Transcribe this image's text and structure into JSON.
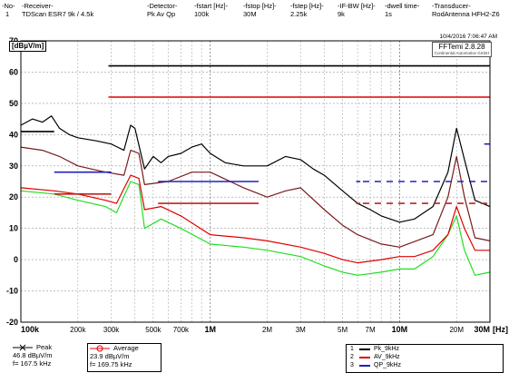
{
  "header": {
    "columns": [
      {
        "label": "-No-",
        "value": "1"
      },
      {
        "label": "-Receiver-",
        "value": "TDScan ESR7 9k / 4.5k"
      },
      {
        "label": "-Detector-",
        "value": "Pk Av Qp"
      },
      {
        "label": "-fstart [Hz]-",
        "value": "100k"
      },
      {
        "label": "-fstop [Hz]-",
        "value": "30M"
      },
      {
        "label": "-fstep [Hz]-",
        "value": "2.25k"
      },
      {
        "label": "-IF-BW [Hz]-",
        "value": "9k"
      },
      {
        "label": "-dwell time-",
        "value": "1s"
      },
      {
        "label": "-Transducer-",
        "value": "RodAntenna HFH2-Z6"
      }
    ]
  },
  "timestamp": "10/4/2016 7:06:47 AM",
  "software": {
    "name": "FFTemi 2.8.28",
    "company": "Continental Automotive GmbH"
  },
  "chart_data": {
    "type": "line",
    "ylabel": "[dBµV/m]",
    "xlabel": "[Hz]",
    "xscale": "log",
    "xlim": [
      100000,
      30000000
    ],
    "ylim": [
      -20,
      70
    ],
    "yticks": [
      "70",
      "60",
      "50",
      "40",
      "30",
      "20",
      "10",
      "0",
      "-10",
      "-20"
    ],
    "xticks_major": [
      "100k",
      "1M",
      "10M",
      "30M"
    ],
    "xticks_minor": [
      "200k",
      "300k",
      "500k",
      "700k",
      "2M",
      "3M",
      "5M",
      "7M",
      "20M"
    ],
    "grid": true,
    "limit_lines": [
      {
        "color": "#000000",
        "style": "solid",
        "segments": [
          [
            290000,
            30000000,
            62
          ]
        ]
      },
      {
        "color": "#e00000",
        "style": "solid",
        "segments": [
          [
            290000,
            30000000,
            52
          ]
        ]
      },
      {
        "color": "#000000",
        "style": "solid",
        "segments": [
          [
            100000,
            150000,
            41
          ]
        ]
      },
      {
        "color": "#2020c0",
        "style": "solid",
        "segments": [
          [
            150000,
            300000,
            28
          ],
          [
            530000,
            1800000,
            25
          ],
          [
            28000000,
            30000000,
            37
          ]
        ]
      },
      {
        "color": "#2020c0",
        "style": "dashed",
        "segments": [
          [
            5900000,
            6200000,
            25
          ],
          [
            6400000,
            30000000,
            25
          ]
        ]
      },
      {
        "color": "#c02020",
        "style": "solid",
        "segments": [
          [
            150000,
            300000,
            21
          ],
          [
            530000,
            1800000,
            18
          ]
        ]
      },
      {
        "color": "#c02020",
        "style": "dashed",
        "segments": [
          [
            5900000,
            6200000,
            18
          ],
          [
            6400000,
            30000000,
            18
          ]
        ]
      }
    ],
    "series": [
      {
        "name": "Pk_9kHz",
        "color": "#000000",
        "points": [
          [
            100000,
            43
          ],
          [
            115000,
            45
          ],
          [
            130000,
            44
          ],
          [
            145000,
            46
          ],
          [
            160000,
            42
          ],
          [
            180000,
            40
          ],
          [
            200000,
            39
          ],
          [
            250000,
            38
          ],
          [
            300000,
            37
          ],
          [
            350000,
            35
          ],
          [
            380000,
            43
          ],
          [
            400000,
            42
          ],
          [
            450000,
            29
          ],
          [
            500000,
            33
          ],
          [
            550000,
            31
          ],
          [
            600000,
            33
          ],
          [
            700000,
            34
          ],
          [
            800000,
            36
          ],
          [
            900000,
            37
          ],
          [
            1000000,
            34
          ],
          [
            1200000,
            31
          ],
          [
            1500000,
            30
          ],
          [
            2000000,
            30
          ],
          [
            2500000,
            33
          ],
          [
            3000000,
            32
          ],
          [
            3500000,
            29
          ],
          [
            4000000,
            27
          ],
          [
            5000000,
            22
          ],
          [
            6000000,
            18
          ],
          [
            7000000,
            16
          ],
          [
            8000000,
            14
          ],
          [
            10000000,
            12
          ],
          [
            12000000,
            13
          ],
          [
            15000000,
            17
          ],
          [
            18000000,
            28
          ],
          [
            20000000,
            42
          ],
          [
            22000000,
            32
          ],
          [
            25000000,
            19
          ],
          [
            30000000,
            17
          ]
        ]
      },
      {
        "name": "AV_9kHz",
        "color": "#e00000",
        "points": [
          [
            100000,
            23
          ],
          [
            150000,
            22
          ],
          [
            200000,
            21
          ],
          [
            280000,
            19
          ],
          [
            320000,
            18
          ],
          [
            380000,
            27
          ],
          [
            420000,
            26
          ],
          [
            450000,
            16
          ],
          [
            550000,
            17
          ],
          [
            700000,
            14
          ],
          [
            1000000,
            8
          ],
          [
            1500000,
            7
          ],
          [
            2000000,
            6
          ],
          [
            3000000,
            4
          ],
          [
            4000000,
            2
          ],
          [
            5000000,
            0
          ],
          [
            6000000,
            -1
          ],
          [
            8000000,
            0
          ],
          [
            10000000,
            1
          ],
          [
            12000000,
            1
          ],
          [
            15000000,
            3
          ],
          [
            18000000,
            8
          ],
          [
            20000000,
            17
          ],
          [
            22000000,
            10
          ],
          [
            25000000,
            3
          ],
          [
            30000000,
            3
          ]
        ]
      },
      {
        "name": "QP_9kHz",
        "color": "#2020c0",
        "points": []
      },
      {
        "name": "",
        "color": "#7a1a1a",
        "points": [
          [
            100000,
            36
          ],
          [
            130000,
            35
          ],
          [
            160000,
            33
          ],
          [
            200000,
            30
          ],
          [
            280000,
            28
          ],
          [
            350000,
            27
          ],
          [
            380000,
            35
          ],
          [
            420000,
            34
          ],
          [
            450000,
            24
          ],
          [
            600000,
            25
          ],
          [
            800000,
            28
          ],
          [
            1000000,
            28
          ],
          [
            1500000,
            23
          ],
          [
            2000000,
            20
          ],
          [
            2500000,
            22
          ],
          [
            3000000,
            23
          ],
          [
            4000000,
            16
          ],
          [
            5000000,
            11
          ],
          [
            6000000,
            8
          ],
          [
            8000000,
            5
          ],
          [
            10000000,
            4
          ],
          [
            15000000,
            8
          ],
          [
            18000000,
            20
          ],
          [
            20000000,
            33
          ],
          [
            22000000,
            20
          ],
          [
            25000000,
            7
          ],
          [
            30000000,
            6
          ]
        ]
      },
      {
        "name": "",
        "color": "#22dd22",
        "points": [
          [
            100000,
            22
          ],
          [
            150000,
            21
          ],
          [
            200000,
            19
          ],
          [
            280000,
            17
          ],
          [
            320000,
            15
          ],
          [
            380000,
            25
          ],
          [
            420000,
            24
          ],
          [
            450000,
            10
          ],
          [
            550000,
            13
          ],
          [
            700000,
            10
          ],
          [
            1000000,
            5
          ],
          [
            1500000,
            4
          ],
          [
            2000000,
            3
          ],
          [
            3000000,
            1
          ],
          [
            4000000,
            -2
          ],
          [
            5000000,
            -4
          ],
          [
            6000000,
            -5
          ],
          [
            8000000,
            -4
          ],
          [
            10000000,
            -3
          ],
          [
            12000000,
            -3
          ],
          [
            15000000,
            1
          ],
          [
            18000000,
            8
          ],
          [
            20000000,
            14
          ],
          [
            22000000,
            3
          ],
          [
            25000000,
            -5
          ],
          [
            30000000,
            -4
          ]
        ]
      }
    ]
  },
  "markers": [
    {
      "name": "Peak",
      "value": "46.8 dBµV/m",
      "freq": "f= 167.5 kHz",
      "color": "#000000"
    },
    {
      "name": "Average",
      "value": "23.9 dBµV/m",
      "freq": "f= 169.75 kHz",
      "color": "#e00000"
    }
  ],
  "legend": [
    {
      "num": "1",
      "name": "Pk_9kHz",
      "color": "#000000"
    },
    {
      "num": "2",
      "name": "AV_9kHz",
      "color": "#e00000"
    },
    {
      "num": "3",
      "name": "QP_9kHz",
      "color": "#2020c0"
    }
  ]
}
